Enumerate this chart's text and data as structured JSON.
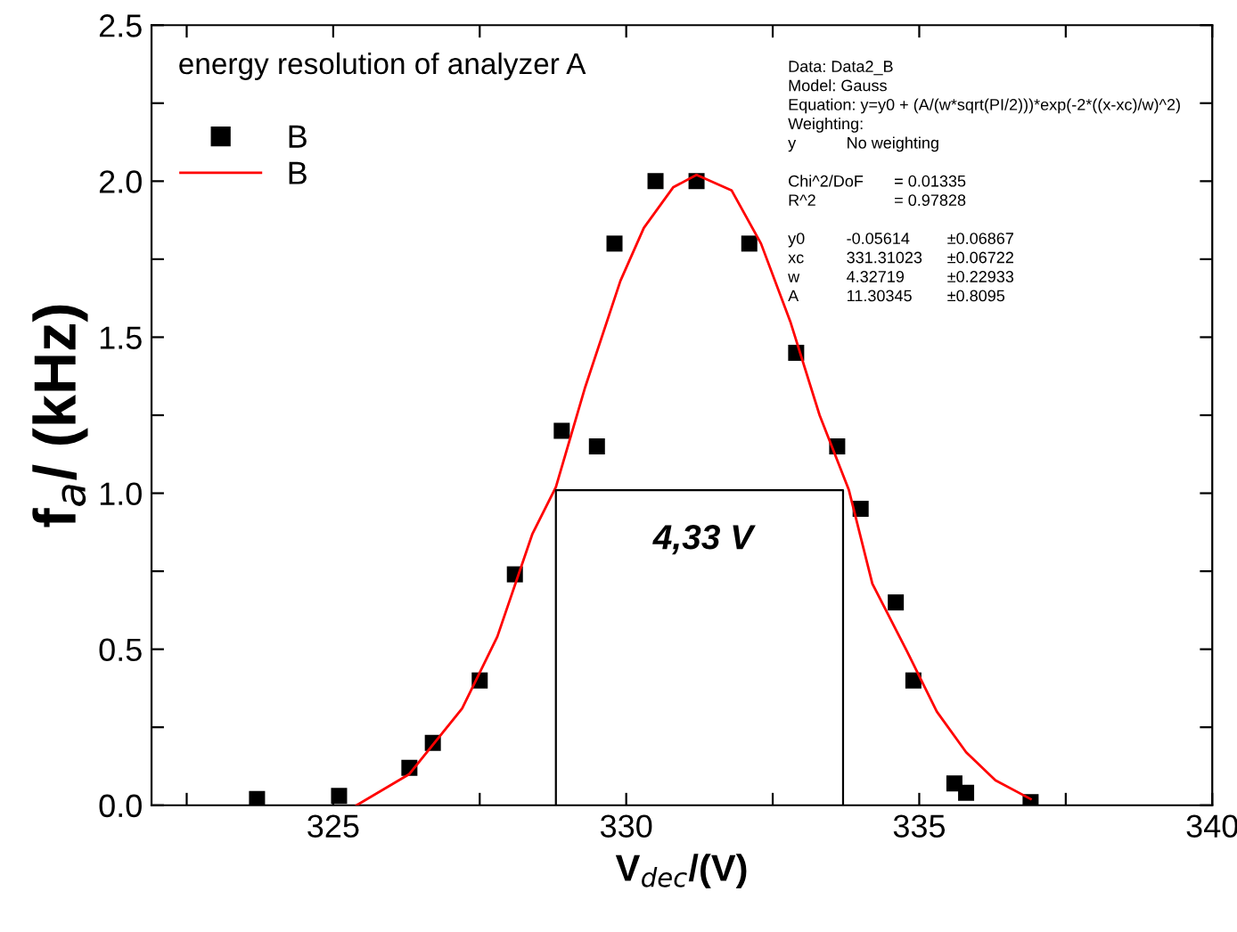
{
  "chart_data": {
    "type": "scatter",
    "title": "energy resolution of analyzer A",
    "xlabel": "V$_{dec}$/(V)",
    "ylabel": "f$_{a}$/ (kHz)",
    "xlim": [
      321.9,
      340
    ],
    "ylim": [
      0,
      2.5
    ],
    "xticks": [
      {
        "value": 322.5,
        "label": null
      },
      325,
      {
        "value": 327.5,
        "label": null
      },
      330,
      {
        "value": 332.5,
        "label": null
      },
      335,
      {
        "value": 337.5,
        "label": null
      },
      340
    ],
    "yticks": [
      {
        "value": 0,
        "label": "0.0"
      },
      {
        "value": 0.25,
        "label": null
      },
      0.5,
      {
        "value": 0.75,
        "label": null
      },
      {
        "value": 1,
        "label": "1.0"
      },
      {
        "value": 1.25,
        "label": null
      },
      1.5,
      {
        "value": 1.75,
        "label": null
      },
      {
        "value": 2,
        "label": "2.0"
      },
      {
        "value": 2.25,
        "label": null
      },
      2.5
    ],
    "grid": false,
    "legend": "top left",
    "series": [
      {
        "name": "B",
        "marker": "square",
        "color": "#000000",
        "x": [
          323.7,
          325.1,
          326.3,
          326.7,
          327.5,
          328.1,
          328.9,
          329.5,
          329.8,
          330.5,
          331.2,
          332.1,
          332.9,
          333.6,
          334.0,
          334.6,
          334.9,
          335.6,
          335.8,
          336.9
        ],
        "values": [
          0.02,
          0.03,
          0.12,
          0.2,
          0.4,
          0.74,
          1.2,
          1.15,
          1.8,
          2.0,
          2.0,
          1.8,
          1.45,
          1.15,
          0.95,
          0.65,
          0.4,
          0.07,
          0.04,
          0.01
        ]
      },
      {
        "name": "B",
        "type": "line",
        "line_style": "solid",
        "color": "#ff0000",
        "x": [
          325.4,
          326.3,
          327.2,
          327.8,
          328.4,
          328.8,
          329.3,
          329.9,
          330.3,
          330.8,
          331.2,
          331.8,
          332.3,
          332.8,
          333.3,
          333.8,
          334.2,
          334.8,
          335.3,
          335.8,
          336.3,
          336.9
        ],
        "values": [
          0.0,
          0.1,
          0.31,
          0.54,
          0.87,
          1.02,
          1.34,
          1.68,
          1.85,
          1.98,
          2.02,
          1.97,
          1.8,
          1.55,
          1.25,
          1.01,
          0.71,
          0.49,
          0.3,
          0.17,
          0.08,
          0.02
        ]
      },
      {
        "type": "line",
        "line_style": "solid",
        "color": "#000000",
        "x": [
          328.8,
          328.8,
          333.7,
          333.7
        ],
        "values": [
          0,
          1.01,
          1.01,
          0
        ]
      }
    ],
    "annotations": [
      "4,33 V",
      "Data: Data2_B\nModel: Gauss\nEquation: y=y0 + (A/(w*sqrt(PI/2)))*exp(-2*((x-xc)/w)^2)\nWeighting:\ny\tNo weighting",
      "Chi^2/DoF\t= 0.01335\nR^2\t= 0.97828",
      "y0\t-0.05614\t±0.06867\nxc\t331.31023\t±0.06722\nw\t4.32719\t±0.22933\nA\t11.30345\t±0.8095"
    ]
  }
}
